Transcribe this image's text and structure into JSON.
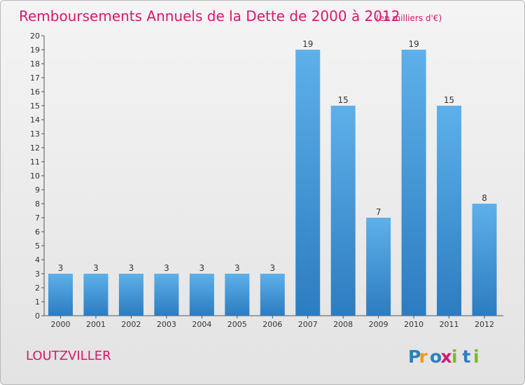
{
  "chart_data": {
    "type": "bar",
    "title": "Remboursements Annuels de la Dette de 2000 à 2012",
    "subtitle": "(en milliers d'€)",
    "xlabel": "",
    "ylabel": "",
    "categories": [
      "2000",
      "2001",
      "2002",
      "2003",
      "2004",
      "2005",
      "2006",
      "2007",
      "2008",
      "2009",
      "2010",
      "2011",
      "2012"
    ],
    "values": [
      3,
      3,
      3,
      3,
      3,
      3,
      3,
      19,
      15,
      7,
      19,
      15,
      8
    ],
    "ylim": [
      0,
      20
    ],
    "yticks": [
      0,
      1,
      2,
      3,
      4,
      5,
      6,
      7,
      8,
      9,
      10,
      11,
      12,
      13,
      14,
      15,
      16,
      17,
      18,
      19,
      20
    ],
    "grid": false,
    "legend": "none",
    "bar_color": "#4a9fdc"
  },
  "footer": {
    "commune": "LOUTZVILLER",
    "logo_letters": [
      "P",
      "r",
      "o",
      "x",
      "i",
      "t",
      "i"
    ],
    "logo_colors": [
      "#2f7fc1",
      "#f19a1a",
      "#2f7fc1",
      "#d6186f",
      "#7ab929",
      "#2f7fc1",
      "#7ab929"
    ]
  }
}
